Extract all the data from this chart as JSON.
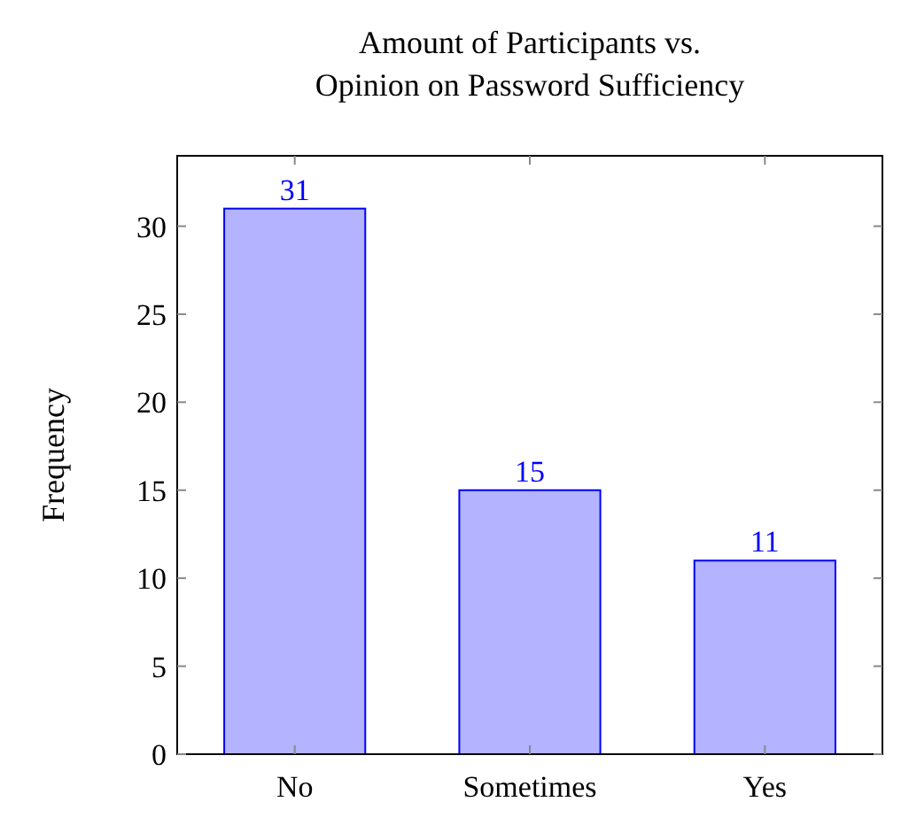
{
  "chart_data": {
    "type": "bar",
    "title": "Amount of Participants vs.\nOpinion on Password Sufficiency",
    "ylabel": "Frequency",
    "categories": [
      "No",
      "Sometimes",
      "Yes"
    ],
    "series": [
      {
        "color": "#b3b3ff",
        "values": [
          31,
          15,
          11
        ]
      }
    ],
    "ylim": [
      0,
      34
    ],
    "yticks": [
      0,
      5,
      10,
      15,
      20,
      25,
      30
    ],
    "grid": false,
    "data_labels": true
  }
}
